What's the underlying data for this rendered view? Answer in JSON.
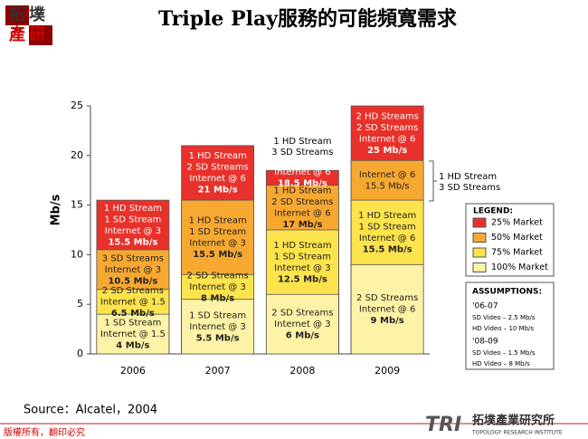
{
  "page": {
    "title": "Triple Play服務的可能頻寬需求",
    "logo_top": "拓墣",
    "logo_bottom": "產研",
    "source": "Source：Alcatel，2004",
    "footer": "版權所有，翻印必究",
    "brand_mark": "TRI",
    "brand_name": "拓墣產業研究所",
    "brand_sub": "TOPOLOGY RESEARCH INSTITUTE"
  },
  "chart_data": {
    "type": "bar",
    "y_label": "Mb/s",
    "categories": [
      "2006",
      "2007",
      "2008",
      "2009"
    ],
    "ylim": [
      0,
      25
    ],
    "yticks": [
      0,
      5,
      10,
      15,
      20,
      25
    ],
    "legend_title": "LEGEND:",
    "series": [
      {
        "name": "25% Market",
        "color": "#e8312b",
        "values": [
          15.5,
          21,
          18.5,
          25
        ],
        "value_labels": [
          "15.5 Mb/s",
          "21 Mb/s",
          "18.5 Mb/s",
          "25 Mb/s"
        ],
        "notes": [
          [
            "1 HD Stream",
            "1 SD Stream",
            "Internet @ 3"
          ],
          [
            "1 HD Stream",
            "2 SD Streams",
            "Internet @ 6"
          ],
          [
            "Internet @ 6"
          ],
          [
            "2 HD Streams",
            "2 SD Streams",
            "Internet @ 6"
          ]
        ]
      },
      {
        "name": "50% Market",
        "color": "#f7a830",
        "values": [
          10.5,
          15.5,
          17,
          19.5
        ],
        "value_labels": [
          "10.5 Mb/s",
          "15.5 Mb/s",
          "17 Mb/s",
          null
        ],
        "notes": [
          [
            "3 SD Streams",
            "Internet @ 3"
          ],
          [
            "1 HD Stream",
            "1 SD Stream",
            "Internet @ 3"
          ],
          [
            "1 HD Stream",
            "2 SD Streams",
            "Internet @ 6"
          ],
          [
            "Internet @ 6",
            "15.5 Mb/s"
          ]
        ]
      },
      {
        "name": "75% Market",
        "color": "#fde34c",
        "values": [
          6.5,
          8,
          12.5,
          15.5
        ],
        "value_labels": [
          "6.5 Mb/s",
          "8 Mb/s",
          "12.5 Mb/s",
          "15.5 Mb/s"
        ],
        "notes": [
          [
            "2 SD Streams",
            "Internet @ 1.5"
          ],
          [
            "2 SD Streams",
            "Internet @ 3"
          ],
          [
            "1 HD Stream",
            "1 SD Stream",
            "Internet @ 3"
          ],
          [
            "1 HD Stream",
            "1 SD Stream",
            "Internet @ 6"
          ]
        ]
      },
      {
        "name": "100% Market",
        "color": "#fdf3a6",
        "values": [
          4,
          5.5,
          6,
          9
        ],
        "value_labels": [
          "4 Mb/s",
          "5.5 Mb/s",
          "6 Mb/s",
          "9 Mb/s"
        ],
        "notes": [
          [
            "1 SD Stream",
            "Internet @ 1.5"
          ],
          [
            "1 SD Stream",
            "Internet @ 3"
          ],
          [
            "2 SD Streams",
            "Internet @ 3"
          ],
          [
            "2 SD Streams",
            "Internet @ 6"
          ]
        ]
      }
    ],
    "annotations": [
      {
        "lines": [
          "1 HD Stream",
          "3 SD Streams"
        ]
      },
      {
        "lines": [
          "1 HD Stream",
          "3 SD Streams"
        ]
      }
    ],
    "assumptions": {
      "title": "ASSUMPTIONS:",
      "groups": [
        {
          "period": "'06-07",
          "items": [
            "SD Video – 2.5 Mb/s",
            "HD Video – 10 Mb/s"
          ]
        },
        {
          "period": "'08-09",
          "items": [
            "SD Video – 1.5 Mb/s",
            "HD Video – 8 Mb/s"
          ]
        }
      ]
    }
  }
}
